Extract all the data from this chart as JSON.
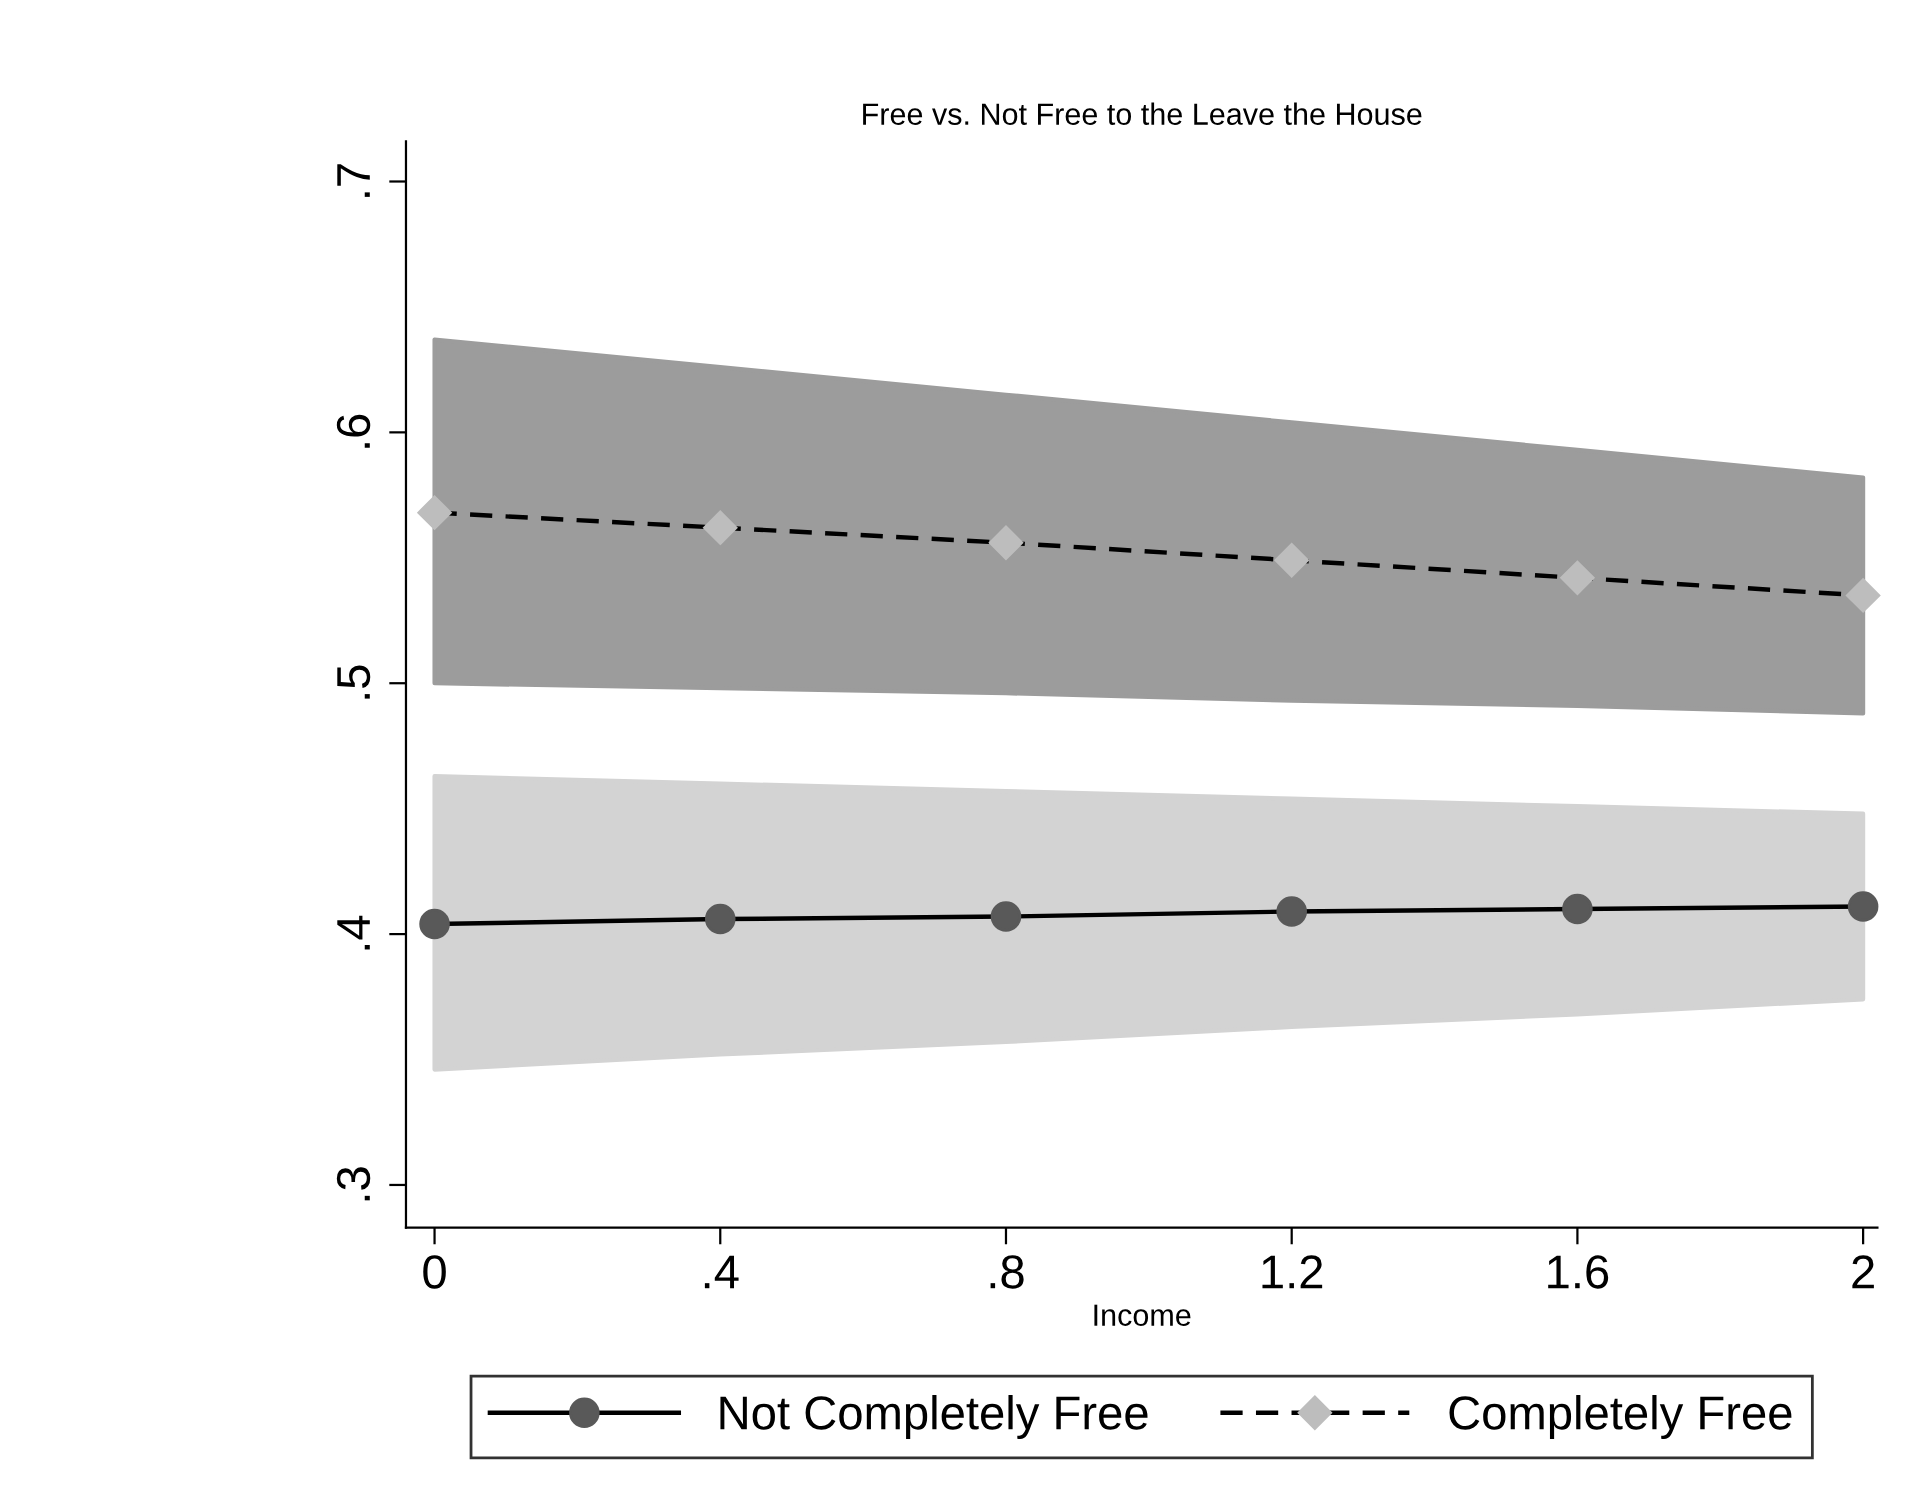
{
  "chart_data": {
    "type": "line",
    "title": "Free vs. Not Free to the Leave the House",
    "xlabel": "Income",
    "x": [
      0,
      0.4,
      0.8,
      1.2,
      1.6,
      2
    ],
    "series": [
      {
        "name": "Not Completely Free",
        "color": "#595959",
        "marker": "circle",
        "line_style": "solid",
        "values": [
          0.404,
          0.406,
          0.407,
          0.409,
          0.41,
          0.411
        ],
        "lower": [
          0.346,
          0.352,
          0.357,
          0.363,
          0.368,
          0.374
        ],
        "upper": [
          0.463,
          0.46,
          0.457,
          0.454,
          0.451,
          0.448
        ]
      },
      {
        "name": "Completely Free",
        "color": "#bdbdbd",
        "marker": "diamond",
        "line_style": "dashed",
        "values": [
          0.568,
          0.562,
          0.556,
          0.549,
          0.542,
          0.535
        ],
        "lower": [
          0.5,
          0.498,
          0.496,
          0.493,
          0.491,
          0.488
        ],
        "upper": [
          0.637,
          0.626,
          0.615,
          0.604,
          0.593,
          0.582
        ]
      }
    ],
    "xlim": [
      -0.04,
      2.02
    ],
    "ylim": [
      0.283,
      0.716
    ],
    "xticks": [
      0,
      {
        "value": 0.4,
        "label": ".4"
      },
      {
        "value": 0.8,
        "label": ".8"
      },
      1.2,
      1.6,
      2
    ],
    "yticks": [
      {
        "value": 0.3,
        "label": ".3"
      },
      {
        "value": 0.4,
        "label": ".4"
      },
      {
        "value": 0.5,
        "label": ".5"
      },
      {
        "value": 0.6,
        "label": ".6"
      },
      {
        "value": 0.7,
        "label": ".7"
      }
    ],
    "grid": false,
    "legend": "bottom"
  }
}
